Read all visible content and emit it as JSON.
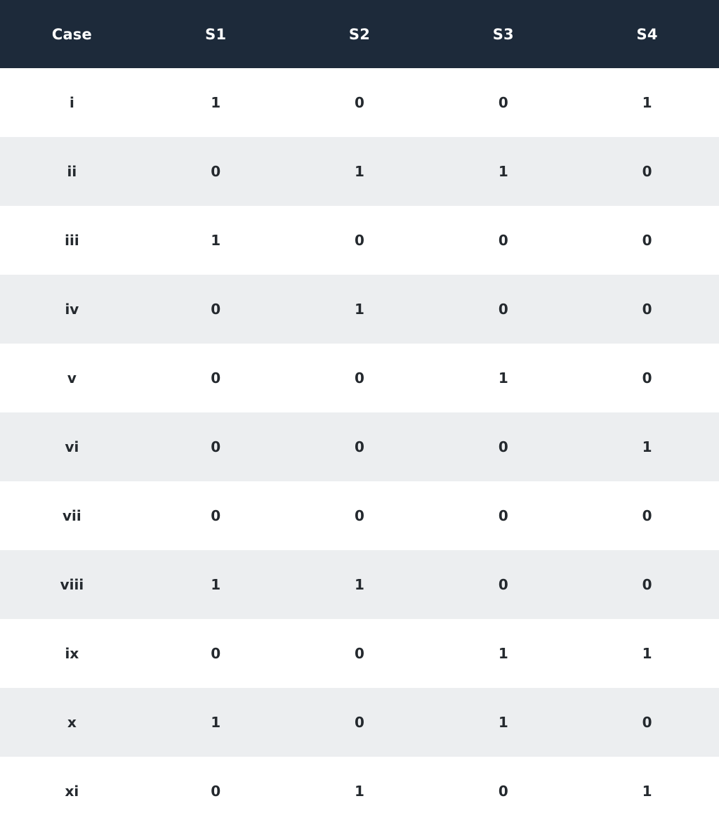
{
  "colors": {
    "header_bg": "#1d2a3a",
    "header_text": "#ffffff",
    "row_stripe": "#eceef0",
    "row_white": "#ffffff",
    "cell_text": "#24292e"
  },
  "chart_data": {
    "type": "table",
    "title": "",
    "columns": [
      "Case",
      "S1",
      "S2",
      "S3",
      "S4"
    ],
    "rows": [
      {
        "case": "i",
        "values": [
          1,
          0,
          0,
          1
        ]
      },
      {
        "case": "ii",
        "values": [
          0,
          1,
          1,
          0
        ]
      },
      {
        "case": "iii",
        "values": [
          1,
          0,
          0,
          0
        ]
      },
      {
        "case": "iv",
        "values": [
          0,
          1,
          0,
          0
        ]
      },
      {
        "case": "v",
        "values": [
          0,
          0,
          1,
          0
        ]
      },
      {
        "case": "vi",
        "values": [
          0,
          0,
          0,
          1
        ]
      },
      {
        "case": "vii",
        "values": [
          0,
          0,
          0,
          0
        ]
      },
      {
        "case": "viii",
        "values": [
          1,
          1,
          0,
          0
        ]
      },
      {
        "case": "ix",
        "values": [
          0,
          0,
          1,
          1
        ]
      },
      {
        "case": "x",
        "values": [
          1,
          0,
          1,
          0
        ]
      },
      {
        "case": "xi",
        "values": [
          0,
          1,
          0,
          1
        ]
      }
    ],
    "layout": {
      "striping": "odd rows white, even rows light gray",
      "alignment": "center",
      "grid": "off"
    }
  }
}
